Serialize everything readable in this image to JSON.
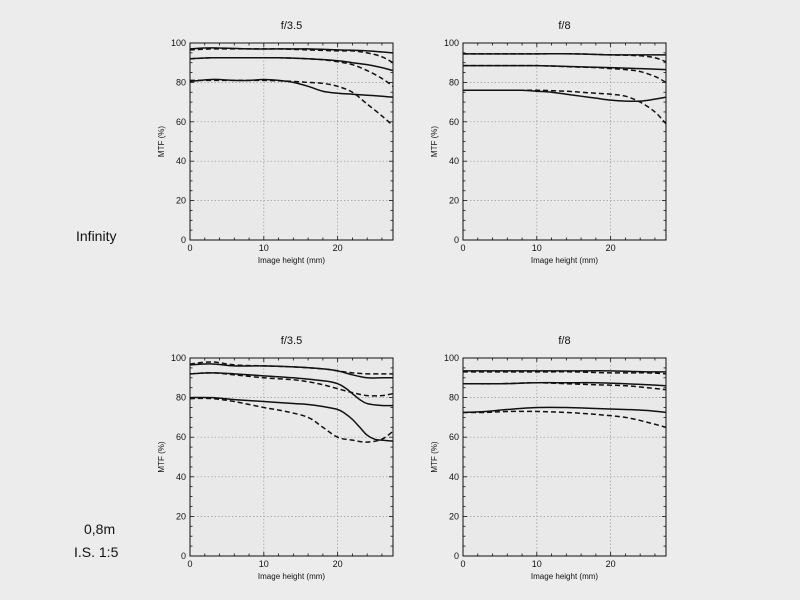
{
  "rows": [
    {
      "label": "Infinity"
    },
    {
      "label": "0,8m",
      "sublabel": "I.S. 1:5"
    }
  ],
  "colors": {
    "background": "#ececec",
    "line": "#111111",
    "grid": "#9a9a9a"
  },
  "chart_data": [
    {
      "type": "line",
      "title": "f/3.5",
      "xlabel": "Image height (mm)",
      "ylabel": "MTF (%)",
      "xlim": [
        0,
        27.5
      ],
      "ylim": [
        0,
        100
      ],
      "xticks": [
        0,
        10,
        20
      ],
      "yticks": [
        0,
        20,
        40,
        60,
        80,
        100
      ],
      "grid": true,
      "series": [
        {
          "style": "solid",
          "x": [
            0,
            3,
            8,
            12,
            16,
            20,
            24,
            27.5
          ],
          "y": [
            97,
            97.5,
            97,
            97,
            97,
            96.5,
            96,
            95
          ]
        },
        {
          "style": "dashed",
          "x": [
            0,
            3,
            8,
            12,
            16,
            20,
            22,
            24,
            26,
            27.5
          ],
          "y": [
            96.5,
            97,
            97,
            97,
            96.5,
            96,
            96,
            95,
            93,
            90
          ]
        },
        {
          "style": "solid",
          "x": [
            0,
            3,
            8,
            12,
            16,
            20,
            22,
            24,
            26,
            27.5
          ],
          "y": [
            92,
            92.5,
            92.5,
            92.5,
            92,
            91,
            90,
            89,
            87.5,
            86
          ]
        },
        {
          "style": "dashed",
          "x": [
            0,
            3,
            8,
            12,
            16,
            18,
            20,
            22,
            24,
            26,
            27.5
          ],
          "y": [
            92,
            92.5,
            92.5,
            92.5,
            92,
            91.5,
            90.5,
            89,
            86,
            82,
            78
          ]
        },
        {
          "style": "solid",
          "x": [
            0,
            3,
            6,
            8,
            10,
            12,
            14,
            16,
            18,
            20,
            22,
            24,
            26,
            27.5
          ],
          "y": [
            80.5,
            81.5,
            81,
            81,
            81.5,
            81,
            80,
            78,
            75.5,
            74.5,
            74,
            73.5,
            73,
            72.5
          ]
        },
        {
          "style": "dashed",
          "x": [
            0,
            3,
            6,
            10,
            14,
            16,
            18,
            20,
            22,
            24,
            26,
            27.5
          ],
          "y": [
            81,
            81,
            81,
            81,
            80.5,
            80,
            79.5,
            78,
            75,
            69,
            63,
            58
          ]
        }
      ]
    },
    {
      "type": "line",
      "title": "f/8",
      "xlabel": "Image height (mm)",
      "ylabel": "MTF (%)",
      "xlim": [
        0,
        27.5
      ],
      "ylim": [
        0,
        100
      ],
      "xticks": [
        0,
        10,
        20
      ],
      "yticks": [
        0,
        20,
        40,
        60,
        80,
        100
      ],
      "grid": true,
      "series": [
        {
          "style": "solid",
          "x": [
            0,
            5,
            10,
            15,
            20,
            25,
            27.5
          ],
          "y": [
            94.5,
            94.5,
            94.5,
            94.5,
            94,
            94,
            94
          ]
        },
        {
          "style": "dashed",
          "x": [
            0,
            5,
            10,
            15,
            20,
            24,
            26,
            27.5
          ],
          "y": [
            94.5,
            94.5,
            94.5,
            94.5,
            94,
            93.5,
            92.5,
            90.5
          ]
        },
        {
          "style": "solid",
          "x": [
            0,
            5,
            10,
            15,
            20,
            24,
            27.5
          ],
          "y": [
            88.5,
            88.5,
            88.5,
            88,
            87.5,
            87,
            86.5
          ]
        },
        {
          "style": "dashed",
          "x": [
            0,
            5,
            10,
            14,
            18,
            20,
            22,
            24,
            26,
            27.5
          ],
          "y": [
            88.5,
            88.5,
            88.5,
            88,
            87.5,
            87,
            86.5,
            85.5,
            83,
            80
          ]
        },
        {
          "style": "solid",
          "x": [
            0,
            5,
            8,
            10,
            12,
            14,
            16,
            18,
            20,
            22,
            24,
            26,
            27.5
          ],
          "y": [
            76,
            76,
            76,
            75.5,
            75,
            74,
            73,
            72,
            71,
            70.5,
            70.5,
            71.5,
            72.5
          ]
        },
        {
          "style": "dashed",
          "x": [
            0,
            5,
            10,
            14,
            16,
            18,
            20,
            22,
            24,
            26,
            27.5
          ],
          "y": [
            76,
            76,
            76,
            75.5,
            75,
            74.5,
            74,
            73,
            70,
            65,
            59
          ]
        }
      ]
    },
    {
      "type": "line",
      "title": "f/3.5",
      "xlabel": "Image height (mm)",
      "ylabel": "MTF (%)",
      "xlim": [
        0,
        27.5
      ],
      "ylim": [
        0,
        100
      ],
      "xticks": [
        0,
        10,
        20
      ],
      "yticks": [
        0,
        20,
        40,
        60,
        80,
        100
      ],
      "grid": true,
      "series": [
        {
          "style": "solid",
          "x": [
            0,
            3,
            6,
            10,
            14,
            18,
            20,
            22,
            24,
            26,
            27.5
          ],
          "y": [
            96.5,
            97,
            96,
            96,
            95.5,
            94.5,
            93.5,
            91.5,
            90,
            90,
            90
          ]
        },
        {
          "style": "dashed",
          "x": [
            0,
            3,
            6,
            10,
            14,
            18,
            20,
            22,
            24,
            26,
            27.5
          ],
          "y": [
            97,
            98,
            96.5,
            96,
            95.5,
            94.5,
            93.5,
            92.5,
            92,
            92,
            92
          ]
        },
        {
          "style": "solid",
          "x": [
            0,
            3,
            6,
            10,
            14,
            18,
            19,
            20,
            21,
            22,
            23,
            24,
            26,
            27.5
          ],
          "y": [
            92,
            92.5,
            92,
            91,
            90,
            88.5,
            88,
            87,
            85,
            82,
            79,
            77,
            76,
            76
          ]
        },
        {
          "style": "dashed",
          "x": [
            0,
            3,
            6,
            10,
            14,
            16,
            18,
            20,
            22,
            24,
            26,
            27.5
          ],
          "y": [
            92,
            92.5,
            91.5,
            90,
            89,
            88,
            86.5,
            84.5,
            82.5,
            81,
            81,
            82
          ]
        },
        {
          "style": "solid",
          "x": [
            0,
            3,
            6,
            10,
            14,
            16,
            18,
            20,
            21,
            22,
            23,
            24,
            25,
            26,
            27.5
          ],
          "y": [
            80,
            80,
            79,
            78,
            77,
            76.5,
            75.5,
            74,
            72,
            69,
            65,
            61,
            59,
            58.5,
            58
          ]
        },
        {
          "style": "dashed",
          "x": [
            0,
            3,
            6,
            10,
            13,
            16,
            18,
            20,
            22,
            24,
            26,
            27.5
          ],
          "y": [
            79.5,
            79.5,
            78,
            75,
            73,
            70,
            65,
            60,
            58.5,
            57.5,
            59,
            63
          ]
        }
      ]
    },
    {
      "type": "line",
      "title": "f/8",
      "xlabel": "Image height (mm)",
      "ylabel": "MTF (%)",
      "xlim": [
        0,
        27.5
      ],
      "ylim": [
        0,
        100
      ],
      "xticks": [
        0,
        10,
        20
      ],
      "yticks": [
        0,
        20,
        40,
        60,
        80,
        100
      ],
      "grid": true,
      "series": [
        {
          "style": "solid",
          "x": [
            0,
            5,
            10,
            15,
            20,
            25,
            27.5
          ],
          "y": [
            93.5,
            93.5,
            93.5,
            93.5,
            93.5,
            93,
            93
          ]
        },
        {
          "style": "dashed",
          "x": [
            0,
            5,
            10,
            15,
            20,
            25,
            27.5
          ],
          "y": [
            93,
            93,
            93,
            93,
            92.5,
            92.5,
            92
          ]
        },
        {
          "style": "solid",
          "x": [
            0,
            5,
            10,
            14,
            18,
            22,
            25,
            27.5
          ],
          "y": [
            87,
            87,
            87.5,
            87.5,
            87.5,
            87,
            86.5,
            86
          ]
        },
        {
          "style": "dashed",
          "x": [
            0,
            5,
            10,
            14,
            18,
            22,
            25,
            27.5
          ],
          "y": [
            87,
            87,
            87.5,
            87,
            86.5,
            86,
            85,
            84
          ]
        },
        {
          "style": "solid",
          "x": [
            0,
            3,
            6,
            10,
            14,
            18,
            22,
            25,
            27.5
          ],
          "y": [
            72.5,
            73,
            74,
            75,
            75,
            74.5,
            74,
            73.5,
            72.5
          ]
        },
        {
          "style": "dashed",
          "x": [
            0,
            3,
            6,
            10,
            14,
            18,
            22,
            25,
            27.5
          ],
          "y": [
            72.5,
            72.5,
            73,
            73,
            72.5,
            71.5,
            70,
            67.5,
            65
          ]
        }
      ]
    }
  ]
}
